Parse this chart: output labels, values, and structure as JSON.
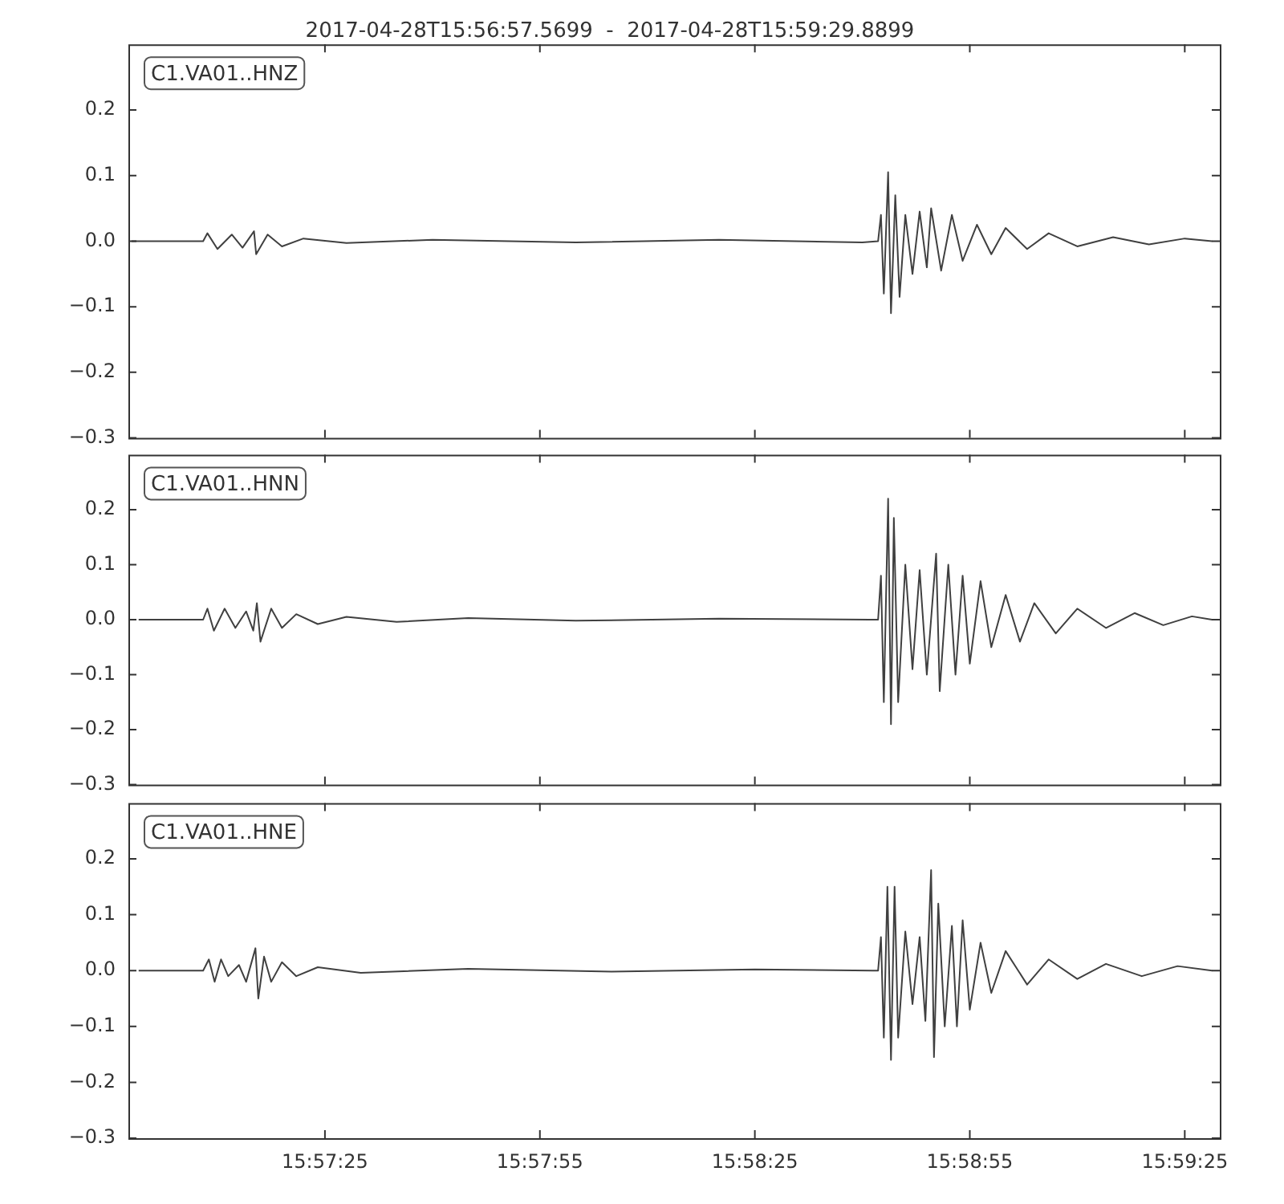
{
  "chart_data": [
    {
      "type": "line",
      "title": "2017-04-28T15:56:57.5699  -  2017-04-28T15:59:29.8899",
      "annotations": [
        "C1.VA01..HNZ"
      ],
      "tick_labels": "y",
      "xlim": [
        "2017-04-28T15:56:57.5699",
        "2017-04-28T15:59:29.8899"
      ],
      "xticks": [
        {
          "value": "2017-04-28T15:57:25",
          "label": null
        },
        {
          "value": "2017-04-28T15:57:55",
          "label": null
        },
        {
          "value": "2017-04-28T15:58:25",
          "label": null
        },
        {
          "value": "2017-04-28T15:58:55",
          "label": null
        },
        {
          "value": "2017-04-28T15:59:25",
          "label": null
        }
      ],
      "ylim": [
        -0.3,
        0.3
      ],
      "yticks": [
        {
          "value": -0.3,
          "label": "−0.3"
        },
        {
          "value": -0.2,
          "label": "−0.2"
        },
        {
          "value": -0.1,
          "label": "−0.1"
        },
        {
          "value": 0,
          "label": "0.0"
        },
        {
          "value": 0.1,
          "label": "0.1"
        },
        {
          "value": 0.2,
          "label": "0.2"
        }
      ],
      "x": [
        "2017-04-28T15:56:58",
        "2017-04-28T15:57:08",
        "2017-04-28T15:57:08.6",
        "2017-04-28T15:57:10",
        "2017-04-28T15:57:12",
        "2017-04-28T15:57:13.5",
        "2017-04-28T15:57:15.1",
        "2017-04-28T15:57:15.4",
        "2017-04-28T15:57:17",
        "2017-04-28T15:57:19",
        "2017-04-28T15:57:22",
        "2017-04-28T15:57:28",
        "2017-04-28T15:57:40",
        "2017-04-28T15:58:00",
        "2017-04-28T15:58:20",
        "2017-04-28T15:58:40",
        "2017-04-28T15:58:42.2",
        "2017-04-28T15:58:42.6",
        "2017-04-28T15:58:43",
        "2017-04-28T15:58:43.6",
        "2017-04-28T15:58:44",
        "2017-04-28T15:58:44.6",
        "2017-04-28T15:58:45.2",
        "2017-04-28T15:58:46",
        "2017-04-28T15:58:47",
        "2017-04-28T15:58:48",
        "2017-04-28T15:58:49",
        "2017-04-28T15:58:49.6",
        "2017-04-28T15:58:51",
        "2017-04-28T15:58:52.5",
        "2017-04-28T15:58:54",
        "2017-04-28T15:58:56",
        "2017-04-28T15:58:58",
        "2017-04-28T15:59:00",
        "2017-04-28T15:59:03",
        "2017-04-28T15:59:06",
        "2017-04-28T15:59:10",
        "2017-04-28T15:59:15",
        "2017-04-28T15:59:20",
        "2017-04-28T15:59:25",
        "2017-04-28T15:59:28.8"
      ],
      "series": [
        {
          "color": "#404040",
          "values": [
            0,
            0,
            0.012,
            -0.012,
            0.01,
            -0.01,
            0.015,
            -0.02,
            0.01,
            -0.008,
            0.004,
            -0.003,
            0.002,
            -0.002,
            0.002,
            -0.002,
            0,
            0.04,
            -0.08,
            0.105,
            -0.11,
            0.07,
            -0.085,
            0.04,
            -0.05,
            0.045,
            -0.04,
            0.05,
            -0.045,
            0.04,
            -0.03,
            0.025,
            -0.02,
            0.02,
            -0.012,
            0.012,
            -0.008,
            0.006,
            -0.005,
            0.004,
            0
          ]
        }
      ]
    },
    {
      "type": "line",
      "annotations": [
        "C1.VA01..HNN"
      ],
      "tick_labels": "y",
      "xlim": [
        "2017-04-28T15:56:57.5699",
        "2017-04-28T15:59:29.8899"
      ],
      "xticks": [
        {
          "value": "2017-04-28T15:57:25",
          "label": null
        },
        {
          "value": "2017-04-28T15:57:55",
          "label": null
        },
        {
          "value": "2017-04-28T15:58:25",
          "label": null
        },
        {
          "value": "2017-04-28T15:58:55",
          "label": null
        },
        {
          "value": "2017-04-28T15:59:25",
          "label": null
        }
      ],
      "ylim": [
        -0.3,
        0.3
      ],
      "yticks": [
        {
          "value": -0.3,
          "label": "−0.3"
        },
        {
          "value": -0.2,
          "label": "−0.2"
        },
        {
          "value": -0.1,
          "label": "−0.1"
        },
        {
          "value": 0,
          "label": "0.0"
        },
        {
          "value": 0.1,
          "label": "0.1"
        },
        {
          "value": 0.2,
          "label": "0.2"
        }
      ],
      "x": [
        "2017-04-28T15:56:59",
        "2017-04-28T15:57:08",
        "2017-04-28T15:57:08.6",
        "2017-04-28T15:57:09.5",
        "2017-04-28T15:57:11",
        "2017-04-28T15:57:12.5",
        "2017-04-28T15:57:14",
        "2017-04-28T15:57:15",
        "2017-04-28T15:57:15.5",
        "2017-04-28T15:57:16",
        "2017-04-28T15:57:17.5",
        "2017-04-28T15:57:19",
        "2017-04-28T15:57:21",
        "2017-04-28T15:57:24",
        "2017-04-28T15:57:28",
        "2017-04-28T15:57:35",
        "2017-04-28T15:57:45",
        "2017-04-28T15:58:00",
        "2017-04-28T15:58:20",
        "2017-04-28T15:58:41",
        "2017-04-28T15:58:42.2",
        "2017-04-28T15:58:42.6",
        "2017-04-28T15:58:43",
        "2017-04-28T15:58:43.6",
        "2017-04-28T15:58:44",
        "2017-04-28T15:58:44.4",
        "2017-04-28T15:58:45",
        "2017-04-28T15:58:46",
        "2017-04-28T15:58:47",
        "2017-04-28T15:58:48",
        "2017-04-28T15:58:49",
        "2017-04-28T15:58:50.3",
        "2017-04-28T15:58:50.8",
        "2017-04-28T15:58:52",
        "2017-04-28T15:58:53",
        "2017-04-28T15:58:54",
        "2017-04-28T15:58:55",
        "2017-04-28T15:58:56.5",
        "2017-04-28T15:58:58",
        "2017-04-28T15:59:00",
        "2017-04-28T15:59:02",
        "2017-04-28T15:59:04",
        "2017-04-28T15:59:07",
        "2017-04-28T15:59:10",
        "2017-04-28T15:59:14",
        "2017-04-28T15:59:18",
        "2017-04-28T15:59:22",
        "2017-04-28T15:59:26",
        "2017-04-28T15:59:28.8"
      ],
      "series": [
        {
          "color": "#404040",
          "values": [
            0,
            0,
            0.02,
            -0.02,
            0.02,
            -0.015,
            0.015,
            -0.02,
            0.03,
            -0.04,
            0.02,
            -0.015,
            0.01,
            -0.008,
            0.005,
            -0.004,
            0.003,
            -0.002,
            0.002,
            0,
            0,
            0.08,
            -0.15,
            0.22,
            -0.19,
            0.185,
            -0.15,
            0.1,
            -0.09,
            0.09,
            -0.1,
            0.12,
            -0.13,
            0.1,
            -0.1,
            0.08,
            -0.08,
            0.07,
            -0.05,
            0.045,
            -0.04,
            0.03,
            -0.025,
            0.02,
            -0.015,
            0.012,
            -0.01,
            0.006,
            0
          ]
        }
      ]
    },
    {
      "type": "line",
      "annotations": [
        "C1.VA01..HNE"
      ],
      "xlim": [
        "2017-04-28T15:56:57.5699",
        "2017-04-28T15:59:29.8899"
      ],
      "xticks": [
        {
          "value": "2017-04-28T15:57:25",
          "label": "15:57:25"
        },
        {
          "value": "2017-04-28T15:57:55",
          "label": "15:57:55"
        },
        {
          "value": "2017-04-28T15:58:25",
          "label": "15:58:25"
        },
        {
          "value": "2017-04-28T15:58:55",
          "label": "15:58:55"
        },
        {
          "value": "2017-04-28T15:59:25",
          "label": "15:59:25"
        }
      ],
      "ylim": [
        -0.3,
        0.3
      ],
      "yticks": [
        {
          "value": -0.3,
          "label": "−0.3"
        },
        {
          "value": -0.2,
          "label": "−0.2"
        },
        {
          "value": -0.1,
          "label": "−0.1"
        },
        {
          "value": 0,
          "label": "0.0"
        },
        {
          "value": 0.1,
          "label": "0.1"
        },
        {
          "value": 0.2,
          "label": "0.2"
        }
      ],
      "x": [
        "2017-04-28T15:56:59",
        "2017-04-28T15:57:08",
        "2017-04-28T15:57:08.8",
        "2017-04-28T15:57:09.6",
        "2017-04-28T15:57:10.5",
        "2017-04-28T15:57:11.5",
        "2017-04-28T15:57:13",
        "2017-04-28T15:57:14",
        "2017-04-28T15:57:15.3",
        "2017-04-28T15:57:15.7",
        "2017-04-28T15:57:16.5",
        "2017-04-28T15:57:17.5",
        "2017-04-28T15:57:19",
        "2017-04-28T15:57:21",
        "2017-04-28T15:57:24",
        "2017-04-28T15:57:30",
        "2017-04-28T15:57:45",
        "2017-04-28T15:58:05",
        "2017-04-28T15:58:25",
        "2017-04-28T15:58:41.5",
        "2017-04-28T15:58:42.2",
        "2017-04-28T15:58:42.6",
        "2017-04-28T15:58:43",
        "2017-04-28T15:58:43.5",
        "2017-04-28T15:58:44",
        "2017-04-28T15:58:44.5",
        "2017-04-28T15:58:45",
        "2017-04-28T15:58:46",
        "2017-04-28T15:58:47",
        "2017-04-28T15:58:48",
        "2017-04-28T15:58:48.8",
        "2017-04-28T15:58:49.6",
        "2017-04-28T15:58:50",
        "2017-04-28T15:58:50.6",
        "2017-04-28T15:58:51.5",
        "2017-04-28T15:58:52.5",
        "2017-04-28T15:58:53.2",
        "2017-04-28T15:58:54",
        "2017-04-28T15:58:55",
        "2017-04-28T15:58:56.5",
        "2017-04-28T15:58:58",
        "2017-04-28T15:59:00",
        "2017-04-28T15:59:03",
        "2017-04-28T15:59:06",
        "2017-04-28T15:59:10",
        "2017-04-28T15:59:14",
        "2017-04-28T15:59:19",
        "2017-04-28T15:59:24",
        "2017-04-28T15:59:28.8"
      ],
      "series": [
        {
          "color": "#404040",
          "values": [
            0,
            0,
            0.02,
            -0.02,
            0.02,
            -0.01,
            0.01,
            -0.02,
            0.04,
            -0.05,
            0.025,
            -0.02,
            0.015,
            -0.01,
            0.006,
            -0.004,
            0.003,
            -0.002,
            0.002,
            0,
            0,
            0.06,
            -0.12,
            0.15,
            -0.16,
            0.15,
            -0.12,
            0.07,
            -0.06,
            0.06,
            -0.09,
            0.18,
            -0.155,
            0.12,
            -0.1,
            0.08,
            -0.1,
            0.09,
            -0.07,
            0.05,
            -0.04,
            0.035,
            -0.025,
            0.02,
            -0.015,
            0.012,
            -0.01,
            0.008,
            0
          ]
        }
      ]
    }
  ]
}
